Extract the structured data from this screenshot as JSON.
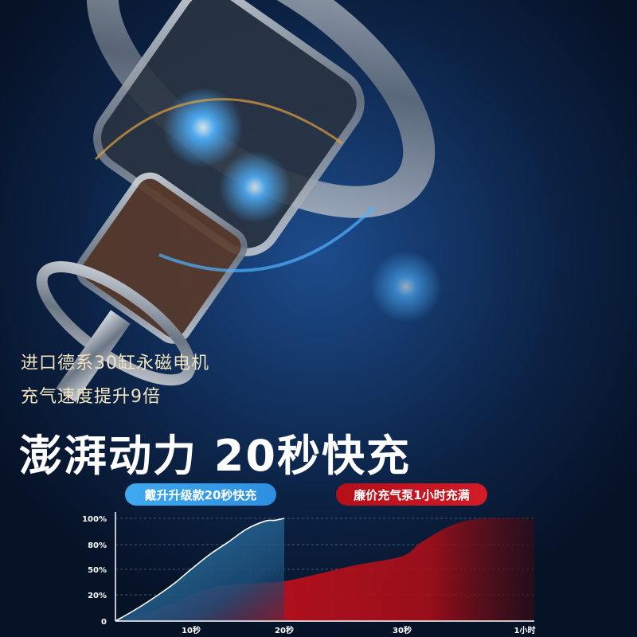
{
  "headline_lines": [
    "进口德系30缸永磁电机",
    "充气速度提升9倍"
  ],
  "headline": "澎湃动力 20秒快充",
  "legend": {
    "fast": {
      "label": "戴升升级款20秒快充",
      "color": "#3fa9f0"
    },
    "slow": {
      "label": "廉价充气泵1小时充满",
      "color": "#c8101c"
    }
  },
  "chart_data": {
    "type": "area",
    "title": "",
    "xlabel": "",
    "ylabel": "",
    "x_ticks": [
      {
        "value": 10,
        "label": "10秒"
      },
      {
        "value": 20,
        "label": "20秒"
      },
      {
        "value": 30,
        "label": "30秒"
      },
      {
        "value": 3600,
        "label": "1小时"
      }
    ],
    "x_unit": "seconds",
    "y_ticks": [
      {
        "value": 0,
        "label": "0"
      },
      {
        "value": 20,
        "label": "20%"
      },
      {
        "value": 50,
        "label": "50%"
      },
      {
        "value": 80,
        "label": "80%"
      },
      {
        "value": 100,
        "label": "100%"
      }
    ],
    "ylim": [
      0,
      100
    ],
    "grid": true,
    "series": [
      {
        "name": "戴升升级款20秒快充",
        "color": "#3fa9f0",
        "x": [
          0,
          3,
          6,
          8,
          10,
          12,
          14,
          16,
          18,
          19,
          20
        ],
        "y": [
          0,
          10,
          22,
          35,
          50,
          68,
          82,
          92,
          98,
          98.5,
          100
        ]
      },
      {
        "name": "廉价充气泵1小时充满",
        "color": "#c8101c",
        "x": [
          0,
          5,
          10,
          13,
          17,
          20,
          23,
          26,
          30,
          600,
          1500,
          2400,
          3600
        ],
        "y": [
          0,
          8,
          20,
          30,
          34,
          36,
          45,
          55,
          66,
          82,
          95,
          100,
          100
        ]
      }
    ]
  }
}
